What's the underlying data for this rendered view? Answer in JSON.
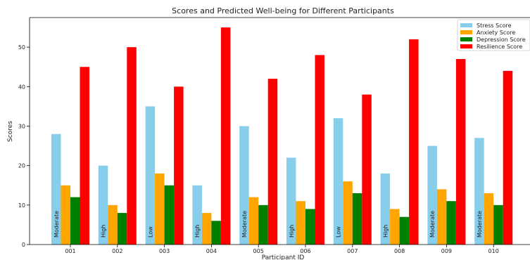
{
  "chart_data": {
    "type": "bar",
    "title": "Scores and Predicted Well-being for Different Participants",
    "xlabel": "Participant ID",
    "ylabel": "Scores",
    "ylim": [
      0,
      57.5
    ],
    "yticks": [
      0,
      10,
      20,
      30,
      40,
      50
    ],
    "grid": false,
    "legend_position": "top-right",
    "categories": [
      "001",
      "002",
      "003",
      "004",
      "005",
      "006",
      "007",
      "008",
      "009",
      "010"
    ],
    "series": [
      {
        "name": "Stress Score",
        "color": "#87ceeb",
        "values": [
          28,
          20,
          35,
          15,
          30,
          22,
          32,
          18,
          25,
          27
        ]
      },
      {
        "name": "Anxiety Score",
        "color": "#ffa500",
        "values": [
          15,
          10,
          18,
          8,
          12,
          11,
          16,
          9,
          14,
          13
        ]
      },
      {
        "name": "Depression Score",
        "color": "#008000",
        "values": [
          12,
          8,
          15,
          6,
          10,
          9,
          13,
          7,
          11,
          10
        ]
      },
      {
        "name": "Resilience Score",
        "color": "#ff0000",
        "values": [
          45,
          50,
          40,
          55,
          42,
          48,
          38,
          52,
          47,
          44
        ]
      }
    ],
    "wellbeing_labels": [
      "Moderate",
      "High",
      "Low",
      "High",
      "Moderate",
      "High",
      "Low",
      "High",
      "Moderate",
      "Moderate"
    ]
  }
}
